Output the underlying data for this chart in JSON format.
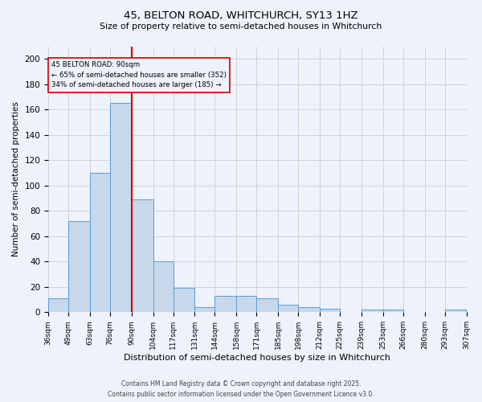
{
  "title1": "45, BELTON ROAD, WHITCHURCH, SY13 1HZ",
  "title2": "Size of property relative to semi-detached houses in Whitchurch",
  "xlabel": "Distribution of semi-detached houses by size in Whitchurch",
  "ylabel": "Number of semi-detached properties",
  "bins": [
    36,
    49,
    63,
    76,
    90,
    104,
    117,
    131,
    144,
    158,
    171,
    185,
    198,
    212,
    225,
    239,
    253,
    266,
    280,
    293,
    307
  ],
  "counts": [
    11,
    72,
    110,
    165,
    89,
    40,
    19,
    4,
    13,
    13,
    11,
    6,
    4,
    3,
    0,
    2,
    2,
    0,
    0,
    2
  ],
  "bar_color": "#c8d8ea",
  "bar_edge_color": "#5b9bd5",
  "property_size": 90,
  "property_label": "45 BELTON ROAD: 90sqm",
  "pct_smaller": 65,
  "n_smaller": 352,
  "pct_larger": 34,
  "n_larger": 185,
  "vline_color": "#cc0000",
  "annotation_box_edge": "#cc0000",
  "ylim": [
    0,
    210
  ],
  "yticks": [
    0,
    20,
    40,
    60,
    80,
    100,
    120,
    140,
    160,
    180,
    200
  ],
  "footer1": "Contains HM Land Registry data © Crown copyright and database right 2025.",
  "footer2": "Contains public sector information licensed under the Open Government Licence v3.0.",
  "bg_color": "#eef2fa"
}
